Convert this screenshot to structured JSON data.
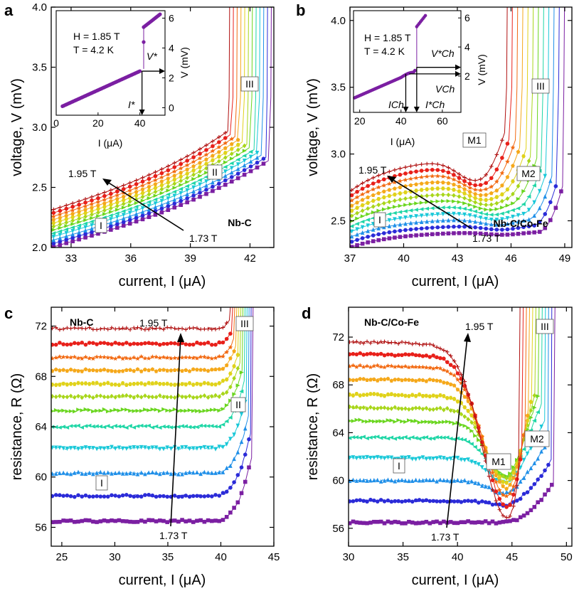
{
  "chart_data": [
    {
      "type": "line",
      "panel": "a",
      "sample": "Nb-C",
      "xlabel": "current, I (μA)",
      "ylabel": "voltage, V (mV)",
      "xlim": [
        32,
        43.2
      ],
      "ylim": [
        2.0,
        4.0
      ],
      "xticks": [
        33,
        36,
        39,
        42
      ],
      "yticks": [
        2.0,
        2.5,
        3.0,
        3.5,
        4.0
      ],
      "field_range": {
        "low": "1.73 T",
        "high": "1.95 T",
        "series_count": 12
      },
      "annotations": [
        "1.95 T",
        "1.73 T",
        "I",
        "II",
        "III"
      ],
      "series_model": {
        "v_at_start_low": 2.0,
        "v_at_start_high": 2.31,
        "v_at_knee_low": 2.73,
        "v_at_knee_high": 2.97,
        "knee_current_low": 43.0,
        "knee_current_high": 40.9
      },
      "inset": {
        "xlabel": "I (μA)",
        "ylabel": "V (mV)",
        "xlim": [
          0,
          52
        ],
        "ylim": [
          -0.5,
          6.5
        ],
        "xticks": [
          0,
          20,
          40
        ],
        "yticks": [
          0,
          2,
          4,
          6
        ],
        "params": [
          "H = 1.85 T",
          "T = 4.2 K"
        ],
        "markers": [
          "V*",
          "I*"
        ],
        "points": [
          [
            3,
            0.1
          ],
          [
            40,
            2.45
          ],
          [
            42,
            4.3
          ],
          [
            42.5,
            5.6
          ],
          [
            50,
            6.2
          ]
        ]
      }
    },
    {
      "type": "line",
      "panel": "b",
      "sample": "Nb-C/Co-Fe",
      "xlabel": "current, I (μA)",
      "ylabel": "voltage, V (mV)",
      "xlim": [
        37,
        49.4
      ],
      "ylim": [
        2.3,
        4.1
      ],
      "xticks": [
        37,
        40,
        43,
        46,
        49
      ],
      "yticks": [
        2.5,
        3.0,
        3.5,
        4.0
      ],
      "field_range": {
        "low": "1.73 T",
        "high": "1.95 T",
        "series_count": 12
      },
      "annotations": [
        "1.95 T",
        "1.73 T",
        "I",
        "M1",
        "M2",
        "III"
      ],
      "series_model": {
        "v_at_start_low": 2.3,
        "v_at_start_high": 2.72,
        "plateau_high": 2.98,
        "dip_current": 45.0,
        "knee_current_low": 48.9,
        "knee_current_high": 45.7
      },
      "inset": {
        "xlabel": "I (μA)",
        "ylabel": "V (mV)",
        "xlim": [
          17,
          69
        ],
        "ylim": [
          -0.5,
          6.5
        ],
        "xticks": [
          20,
          40,
          60
        ],
        "yticks": [
          2,
          4,
          6
        ],
        "params": [
          "H = 1.85 T",
          "T = 4.2 K"
        ],
        "markers": [
          "V*Ch",
          "VCh",
          "ICh",
          "I*Ch"
        ],
        "points": [
          [
            19,
            0.6
          ],
          [
            40,
            1.9
          ],
          [
            44,
            2.2
          ],
          [
            47,
            2.3
          ],
          [
            48,
            4.5
          ],
          [
            48.5,
            5.6
          ],
          [
            52,
            6.2
          ]
        ]
      }
    },
    {
      "type": "line",
      "panel": "c",
      "sample": "Nb-C",
      "xlabel": "current, I (μA)",
      "ylabel": "resistance, R (Ω)",
      "xlim": [
        24,
        45
      ],
      "ylim": [
        54.5,
        73.5
      ],
      "xticks": [
        25,
        30,
        35,
        40,
        45
      ],
      "yticks": [
        56,
        60,
        64,
        68,
        72
      ],
      "field_range": {
        "low": "1.73 T",
        "high": "1.95 T",
        "series_count": 12
      },
      "annotations": [
        "1.95 T",
        "1.73 T",
        "I",
        "II",
        "III"
      ],
      "series_levels": [
        56.5,
        58.5,
        60.3,
        62.3,
        64.0,
        65.3,
        66.4,
        67.4,
        68.5,
        69.5,
        70.6,
        71.8
      ]
    },
    {
      "type": "line",
      "panel": "d",
      "sample": "Nb-C/Co-Fe",
      "xlabel": "current, I (μA)",
      "ylabel": "resistance, R (Ω)",
      "xlim": [
        30,
        50.5
      ],
      "ylim": [
        54.5,
        74.5
      ],
      "xticks": [
        30,
        35,
        40,
        45,
        50
      ],
      "yticks": [
        56,
        60,
        64,
        68,
        72
      ],
      "field_range": {
        "low": "1.73 T",
        "high": "1.95 T",
        "series_count": 12
      },
      "annotations": [
        "1.95 T",
        "1.73 T",
        "I",
        "M1",
        "M2",
        "III"
      ],
      "series_levels": [
        56.5,
        58.3,
        60.0,
        61.9,
        63.6,
        65.0,
        66.1,
        67.2,
        68.5,
        69.6,
        70.6,
        71.6
      ]
    }
  ],
  "colors": [
    "#7b1fa2",
    "#2b2bd8",
    "#1f8fe8",
    "#19c8d8",
    "#1fd6a6",
    "#6ad61f",
    "#a8d61a",
    "#e0d21a",
    "#f5a81a",
    "#f26a12",
    "#e8201a",
    "#b01010"
  ],
  "markers": [
    "square",
    "circle",
    "triangle",
    "triangle-down",
    "triangle-left",
    "triangle-right",
    "diamond",
    "hexagon",
    "pentagon",
    "star",
    "circle",
    "plus"
  ],
  "panel_letters": [
    "a",
    "b",
    "c",
    "d"
  ]
}
